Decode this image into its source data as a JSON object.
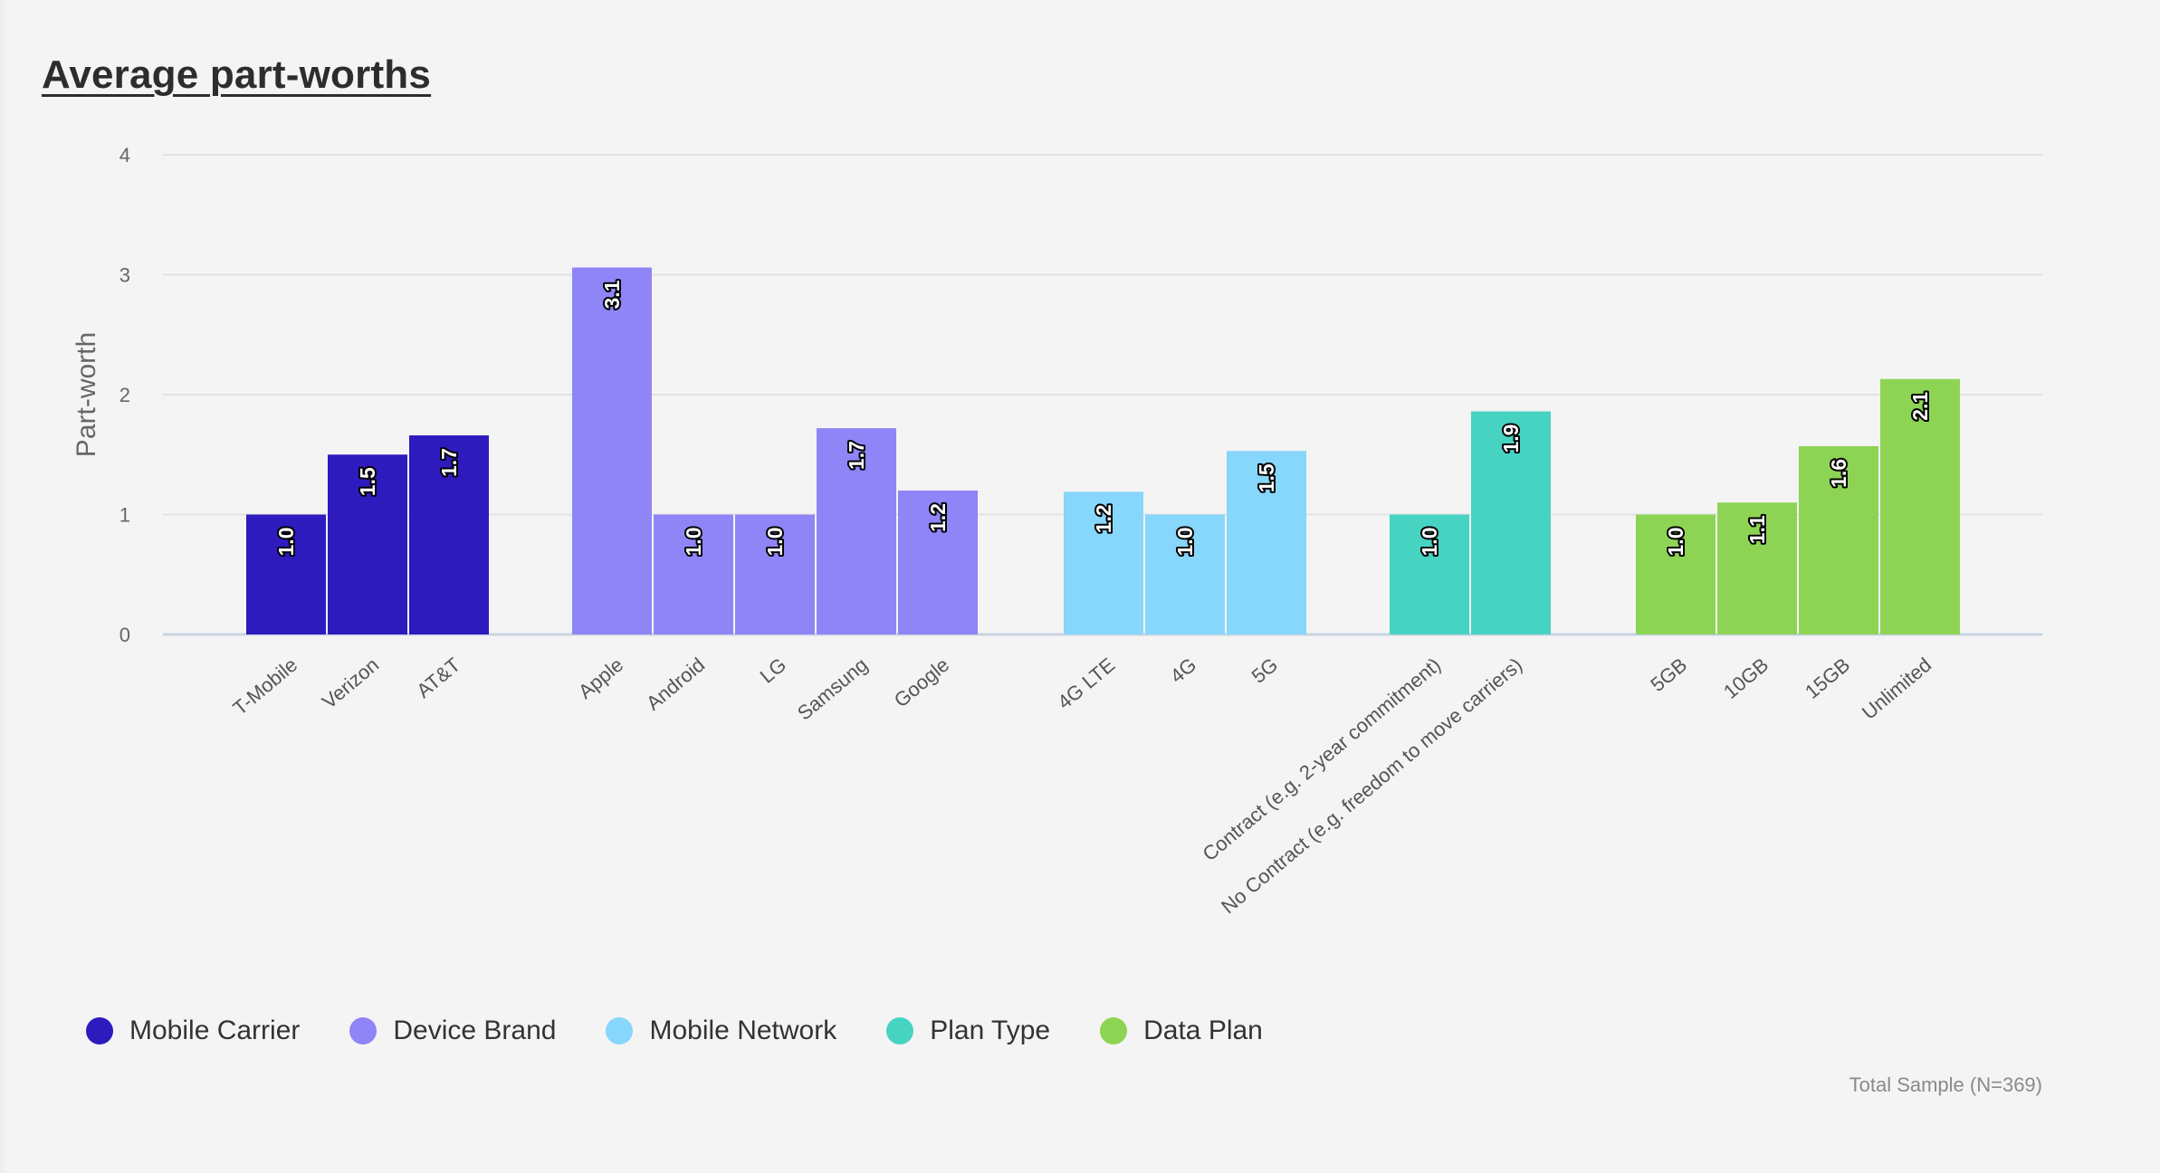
{
  "title": "Average part-worths",
  "footnote": "Total Sample (N=369)",
  "chart_data": {
    "type": "bar",
    "title": "Average part-worths",
    "xlabel": "",
    "ylabel": "Part-worth",
    "ylim": [
      0,
      4
    ],
    "yticks": [
      0,
      1,
      2,
      3,
      4
    ],
    "grid": true,
    "legend_position": "bottom-left",
    "value_format": "1 decimal",
    "groups": [
      {
        "name": "Mobile Carrier",
        "color": "#2e1bbd",
        "categories": [
          "T-Mobile",
          "Verizon",
          "AT&T"
        ],
        "values": [
          1.0,
          1.5,
          1.66
        ]
      },
      {
        "name": "Device Brand",
        "color": "#8f85f7",
        "categories": [
          "Apple",
          "Android",
          "LG",
          "Samsung",
          "Google"
        ],
        "values": [
          3.06,
          1.0,
          1.0,
          1.72,
          1.2
        ]
      },
      {
        "name": "Mobile Network",
        "color": "#87d6fb",
        "categories": [
          "4G LTE",
          "4G",
          "5G"
        ],
        "values": [
          1.19,
          1.0,
          1.53
        ]
      },
      {
        "name": "Plan Type",
        "color": "#47d3c2",
        "categories": [
          "Contract (e.g. 2-year commitment)",
          "No Contract (e.g. freedom to move carriers)"
        ],
        "values": [
          1.0,
          1.86
        ]
      },
      {
        "name": "Data Plan",
        "color": "#8ed454",
        "categories": [
          "5GB",
          "10GB",
          "15GB",
          "Unlimited"
        ],
        "values": [
          1.0,
          1.1,
          1.57,
          2.13
        ]
      }
    ]
  }
}
